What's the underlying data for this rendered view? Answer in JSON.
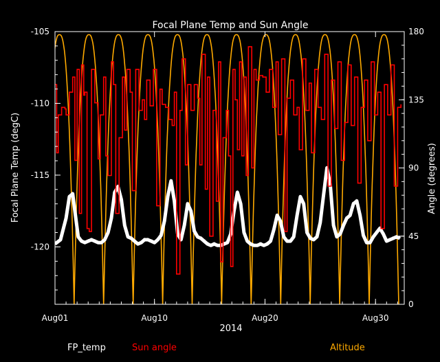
{
  "chart_data": {
    "type": "line",
    "title": "Focal Plane Temp and Sun Angle",
    "xlabel": "2014",
    "ylabel_left": "Focal Plane Temp (degC)",
    "ylabel_right": "Angle (degrees)",
    "xlim": [
      0,
      31.6
    ],
    "ylim_left": [
      -124,
      -105
    ],
    "ylim_right": [
      0,
      180
    ],
    "x_ticks": [
      {
        "label": "Aug01",
        "value": 0
      },
      {
        "label": "Aug10",
        "value": 9
      },
      {
        "label": "Aug20",
        "value": 19
      },
      {
        "label": "Aug30",
        "value": 29
      }
    ],
    "y_ticks_left": [
      {
        "label": "-105",
        "value": -105
      },
      {
        "label": "-110",
        "value": -110
      },
      {
        "label": "-115",
        "value": -115
      },
      {
        "label": "-120",
        "value": -120
      }
    ],
    "y_ticks_right": [
      {
        "label": "180",
        "value": 180
      },
      {
        "label": "135",
        "value": 135
      },
      {
        "label": "90",
        "value": 90
      },
      {
        "label": "45",
        "value": 45
      },
      {
        "label": "0",
        "value": 0
      }
    ],
    "grid": false,
    "legend_placement": "bottom",
    "series": [
      {
        "name": "FP_temp",
        "axis": "left",
        "color": "#ffffff",
        "marker": "star",
        "x": [
          0.0,
          0.5,
          1.0,
          1.3,
          1.6,
          1.8,
          2.1,
          2.4,
          2.7,
          3.0,
          3.3,
          3.6,
          3.9,
          4.2,
          4.5,
          4.8,
          5.1,
          5.4,
          5.7,
          6.0,
          6.3,
          6.6,
          6.9,
          7.2,
          7.5,
          7.8,
          8.1,
          8.4,
          8.7,
          9.0,
          9.3,
          9.6,
          9.9,
          10.2,
          10.5,
          10.8,
          11.1,
          11.4,
          11.7,
          12.0,
          12.3,
          12.6,
          12.9,
          13.2,
          13.5,
          13.8,
          14.1,
          14.4,
          14.7,
          15.0,
          15.3,
          15.6,
          15.9,
          16.2,
          16.5,
          16.8,
          17.1,
          17.4,
          17.7,
          18.0,
          18.3,
          18.6,
          18.9,
          19.2,
          19.5,
          19.8,
          20.1,
          20.4,
          20.7,
          21.0,
          21.3,
          21.6,
          21.9,
          22.2,
          22.5,
          22.8,
          23.1,
          23.4,
          23.7,
          24.0,
          24.3,
          24.6,
          24.9,
          25.2,
          25.5,
          25.8,
          26.1,
          26.4,
          26.7,
          27.0,
          27.3,
          27.6,
          27.9,
          28.2,
          28.5,
          28.8,
          29.1,
          29.4,
          29.7,
          30.0,
          30.3,
          30.6,
          30.9,
          31.2
        ],
        "values": [
          -119.8,
          -119.5,
          -118.0,
          -116.5,
          -116.3,
          -117.5,
          -119.3,
          -119.6,
          -119.7,
          -119.6,
          -119.5,
          -119.6,
          -119.7,
          -119.7,
          -119.5,
          -119.0,
          -118.0,
          -116.2,
          -115.8,
          -116.7,
          -118.5,
          -119.3,
          -119.4,
          -119.6,
          -119.8,
          -119.7,
          -119.5,
          -119.5,
          -119.6,
          -119.7,
          -119.5,
          -119.2,
          -118.2,
          -116.5,
          -115.4,
          -116.8,
          -119.1,
          -119.5,
          -118.5,
          -117.0,
          -117.5,
          -118.9,
          -119.3,
          -119.4,
          -119.6,
          -119.8,
          -119.9,
          -119.8,
          -119.9,
          -119.9,
          -119.8,
          -119.7,
          -119.1,
          -117.5,
          -116.2,
          -117.0,
          -119.0,
          -119.6,
          -119.8,
          -119.9,
          -119.9,
          -119.8,
          -119.9,
          -119.8,
          -119.6,
          -118.8,
          -117.8,
          -118.2,
          -119.3,
          -119.6,
          -119.6,
          -119.3,
          -117.8,
          -116.5,
          -117.0,
          -119.0,
          -119.4,
          -119.5,
          -119.3,
          -118.3,
          -116.4,
          -114.5,
          -115.6,
          -118.5,
          -119.3,
          -119.1,
          -118.5,
          -118.0,
          -117.8,
          -117.0,
          -116.8,
          -117.8,
          -119.2,
          -119.7,
          -119.7,
          -119.3,
          -119.0,
          -118.7,
          -119.1,
          -119.6,
          -119.5,
          -119.4,
          -119.3,
          -119.4
        ]
      },
      {
        "name": "Sun angle",
        "axis": "right",
        "color": "#ff0000",
        "x": [
          0.0,
          0.15,
          0.3,
          0.6,
          0.9,
          1.0,
          1.3,
          1.6,
          1.8,
          2.0,
          2.2,
          2.4,
          2.6,
          2.7,
          2.9,
          3.1,
          3.3,
          3.6,
          3.9,
          4.1,
          4.4,
          4.6,
          4.8,
          5.1,
          5.3,
          5.5,
          5.8,
          6.1,
          6.3,
          6.5,
          6.8,
          7.0,
          7.3,
          7.6,
          7.9,
          8.1,
          8.3,
          8.6,
          8.9,
          9.2,
          9.5,
          9.7,
          10.0,
          10.3,
          10.6,
          10.8,
          11.0,
          11.3,
          11.5,
          11.8,
          12.0,
          12.3,
          12.6,
          12.9,
          13.1,
          13.3,
          13.6,
          13.8,
          14.0,
          14.3,
          14.6,
          14.8,
          15.0,
          15.2,
          15.5,
          15.7,
          15.9,
          16.1,
          16.3,
          16.5,
          16.7,
          16.9,
          17.1,
          17.3,
          17.5,
          17.8,
          18.0,
          18.2,
          18.5,
          18.8,
          19.1,
          19.4,
          19.7,
          20.0,
          20.2,
          20.5,
          20.8,
          21.0,
          21.3,
          21.6,
          21.9,
          22.1,
          22.4,
          22.7,
          23.0,
          23.2,
          23.5,
          23.8,
          24.1,
          24.4,
          24.7,
          25.0,
          25.3,
          25.6,
          25.9,
          26.2,
          26.5,
          26.8,
          27.1,
          27.4,
          27.7,
          28.0,
          28.3,
          28.6,
          28.9,
          29.2,
          29.5,
          29.8,
          30.1,
          30.4,
          30.7,
          31.0,
          31.3
        ],
        "values": [
          145,
          100,
          125,
          130,
          129,
          125,
          140,
          150,
          95,
          155,
          60,
          158,
          138,
          140,
          50,
          48,
          155,
          133,
          96,
          125,
          150,
          98,
          85,
          160,
          145,
          60,
          110,
          150,
          115,
          155,
          140,
          75,
          155,
          128,
          135,
          122,
          148,
          131,
          155,
          65,
          142,
          132,
          130,
          122,
          118,
          140,
          20,
          128,
          162,
          92,
          145,
          128,
          145,
          136,
          92,
          165,
          76,
          150,
          45,
          128,
          68,
          160,
          28,
          110,
          128,
          98,
          25,
          155,
          135,
          102,
          160,
          98,
          150,
          85,
          170,
          90,
          155,
          148,
          151,
          150,
          140,
          155,
          130,
          160,
          112,
          162,
          48,
          136,
          148,
          125,
          130,
          102,
          162,
          128,
          146,
          100,
          155,
          130,
          122,
          165,
          78,
          148,
          116,
          160,
          95,
          120,
          158,
          118,
          150,
          80,
          130,
          148,
          108,
          160,
          125,
          140,
          50,
          145,
          125,
          158,
          78,
          130,
          132
        ]
      },
      {
        "name": "Altitude",
        "axis": "right",
        "color": "#ffaa00",
        "period_days": 2.67,
        "peak_days": [
          0.4,
          3.07,
          5.74,
          8.41,
          11.08,
          13.75,
          16.42,
          19.09,
          21.76,
          24.43,
          27.1,
          29.77
        ],
        "perigee_days": [
          1.73,
          4.4,
          7.07,
          9.74,
          12.41,
          15.08,
          17.75,
          20.42,
          23.09,
          25.76,
          28.43,
          31.1
        ],
        "max": 178,
        "min": 0
      }
    ]
  },
  "legend": {
    "fp_temp": "FP_temp",
    "sun_angle": "Sun angle",
    "altitude": "Altitude"
  },
  "colors": {
    "background": "#000000",
    "axes": "#ffffff",
    "fp_temp": "#ffffff",
    "sun_angle": "#ff0000",
    "altitude": "#ffaa00"
  }
}
